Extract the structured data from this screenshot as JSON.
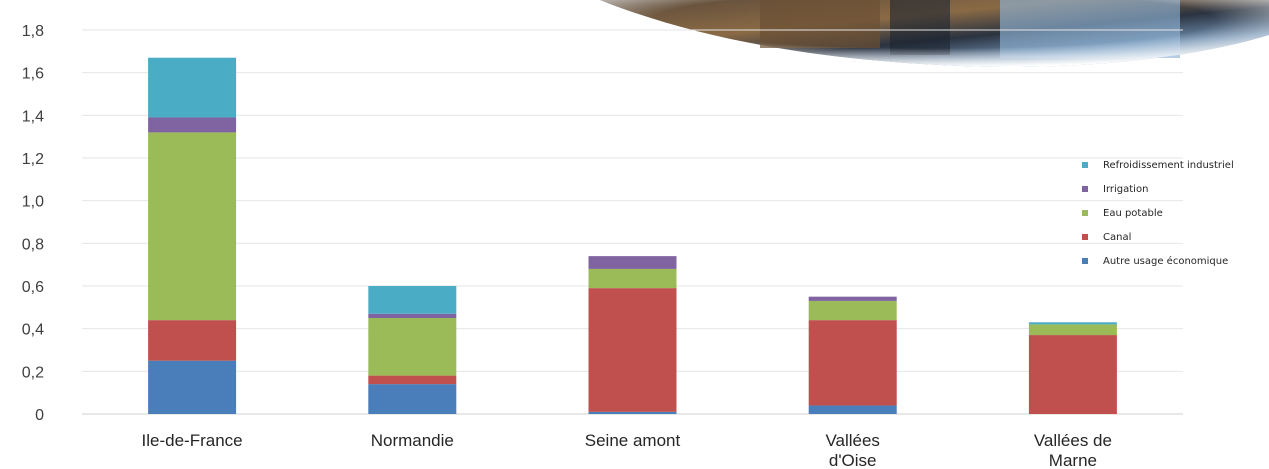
{
  "chart_data": {
    "type": "bar",
    "stacked": true,
    "title": "",
    "xlabel": "",
    "ylabel": "",
    "ylim": [
      0,
      1.8
    ],
    "yticks": [
      "0",
      "0,2",
      "0,4",
      "0,6",
      "0,8",
      "1,0",
      "1,2",
      "1,4",
      "1,6",
      "1,8"
    ],
    "grid": true,
    "legend_position": "right",
    "categories": [
      [
        "Ile-de-France"
      ],
      [
        "Normandie"
      ],
      [
        "Seine amont"
      ],
      [
        "Vallées",
        "d'Oise"
      ],
      [
        "Vallées de",
        "Marne"
      ]
    ],
    "series": [
      {
        "name": "Autre usage économique",
        "color": "#4a7ebb",
        "values": [
          0.25,
          0.14,
          0.01,
          0.04,
          0.0
        ]
      },
      {
        "name": "Canal",
        "color": "#c0504d",
        "values": [
          0.19,
          0.04,
          0.58,
          0.4,
          0.37
        ]
      },
      {
        "name": "Eau potable",
        "color": "#9bbb59",
        "values": [
          0.88,
          0.27,
          0.09,
          0.09,
          0.05
        ]
      },
      {
        "name": "Irrigation",
        "color": "#8064a2",
        "values": [
          0.07,
          0.02,
          0.06,
          0.02,
          0.0
        ]
      },
      {
        "name": "Refroidissement industriel",
        "color": "#4bacc6",
        "values": [
          0.28,
          0.13,
          0.0,
          0.0,
          0.01
        ]
      }
    ]
  }
}
